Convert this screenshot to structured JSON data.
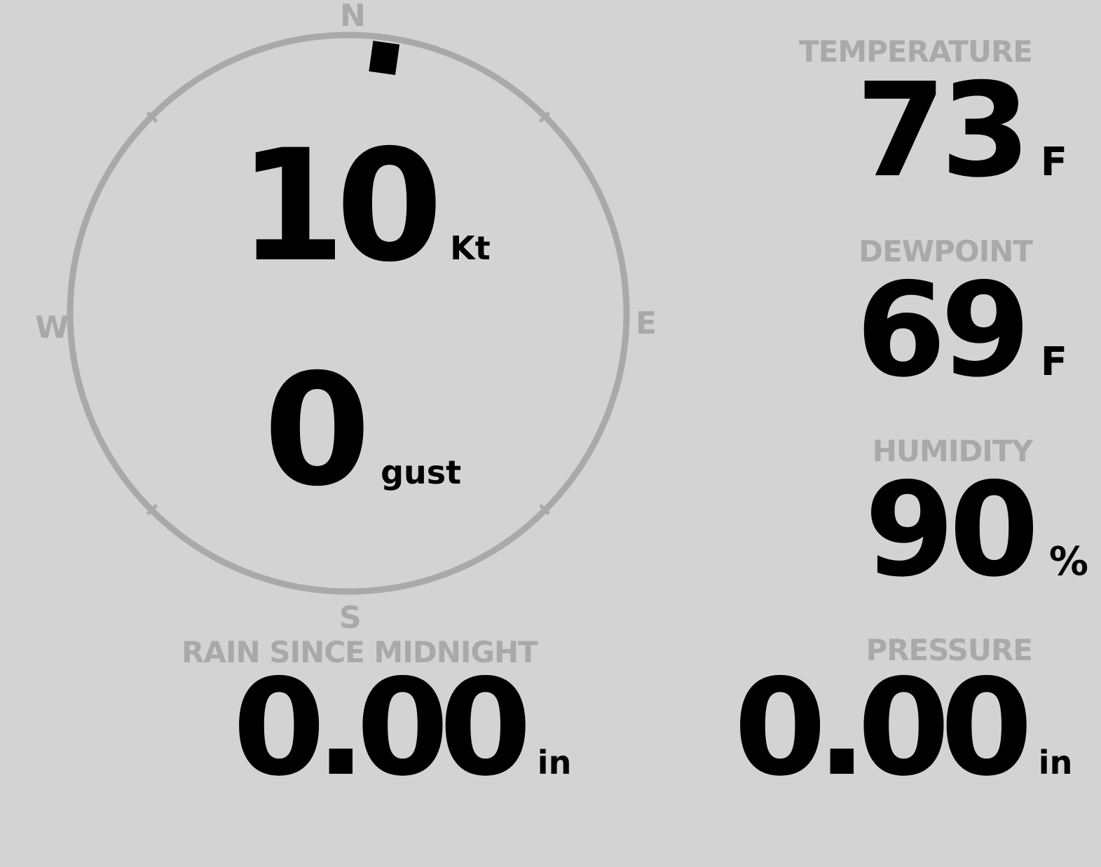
{
  "colors": {
    "background": "#d3d3d3",
    "label": "#a9a9a9",
    "value": "#000000",
    "compass_ring": "#a9a9a9"
  },
  "wind": {
    "direction_deg": 8,
    "compass": {
      "n": "N",
      "e": "E",
      "s": "S",
      "w": "W"
    },
    "speed": "10",
    "speed_unit": "Kt",
    "gust": "0",
    "gust_unit": "gust"
  },
  "temperature": {
    "label": "TEMPERATURE",
    "value": "73",
    "unit": "F"
  },
  "dewpoint": {
    "label": "DEWPOINT",
    "value": "69",
    "unit": "F"
  },
  "humidity": {
    "label": "HUMIDITY",
    "value": "90",
    "unit": "%"
  },
  "rain": {
    "label": "RAIN SINCE MIDNIGHT",
    "value": "0.00",
    "unit": "in"
  },
  "pressure": {
    "label": "PRESSURE",
    "value": "0.00",
    "unit": "in"
  }
}
